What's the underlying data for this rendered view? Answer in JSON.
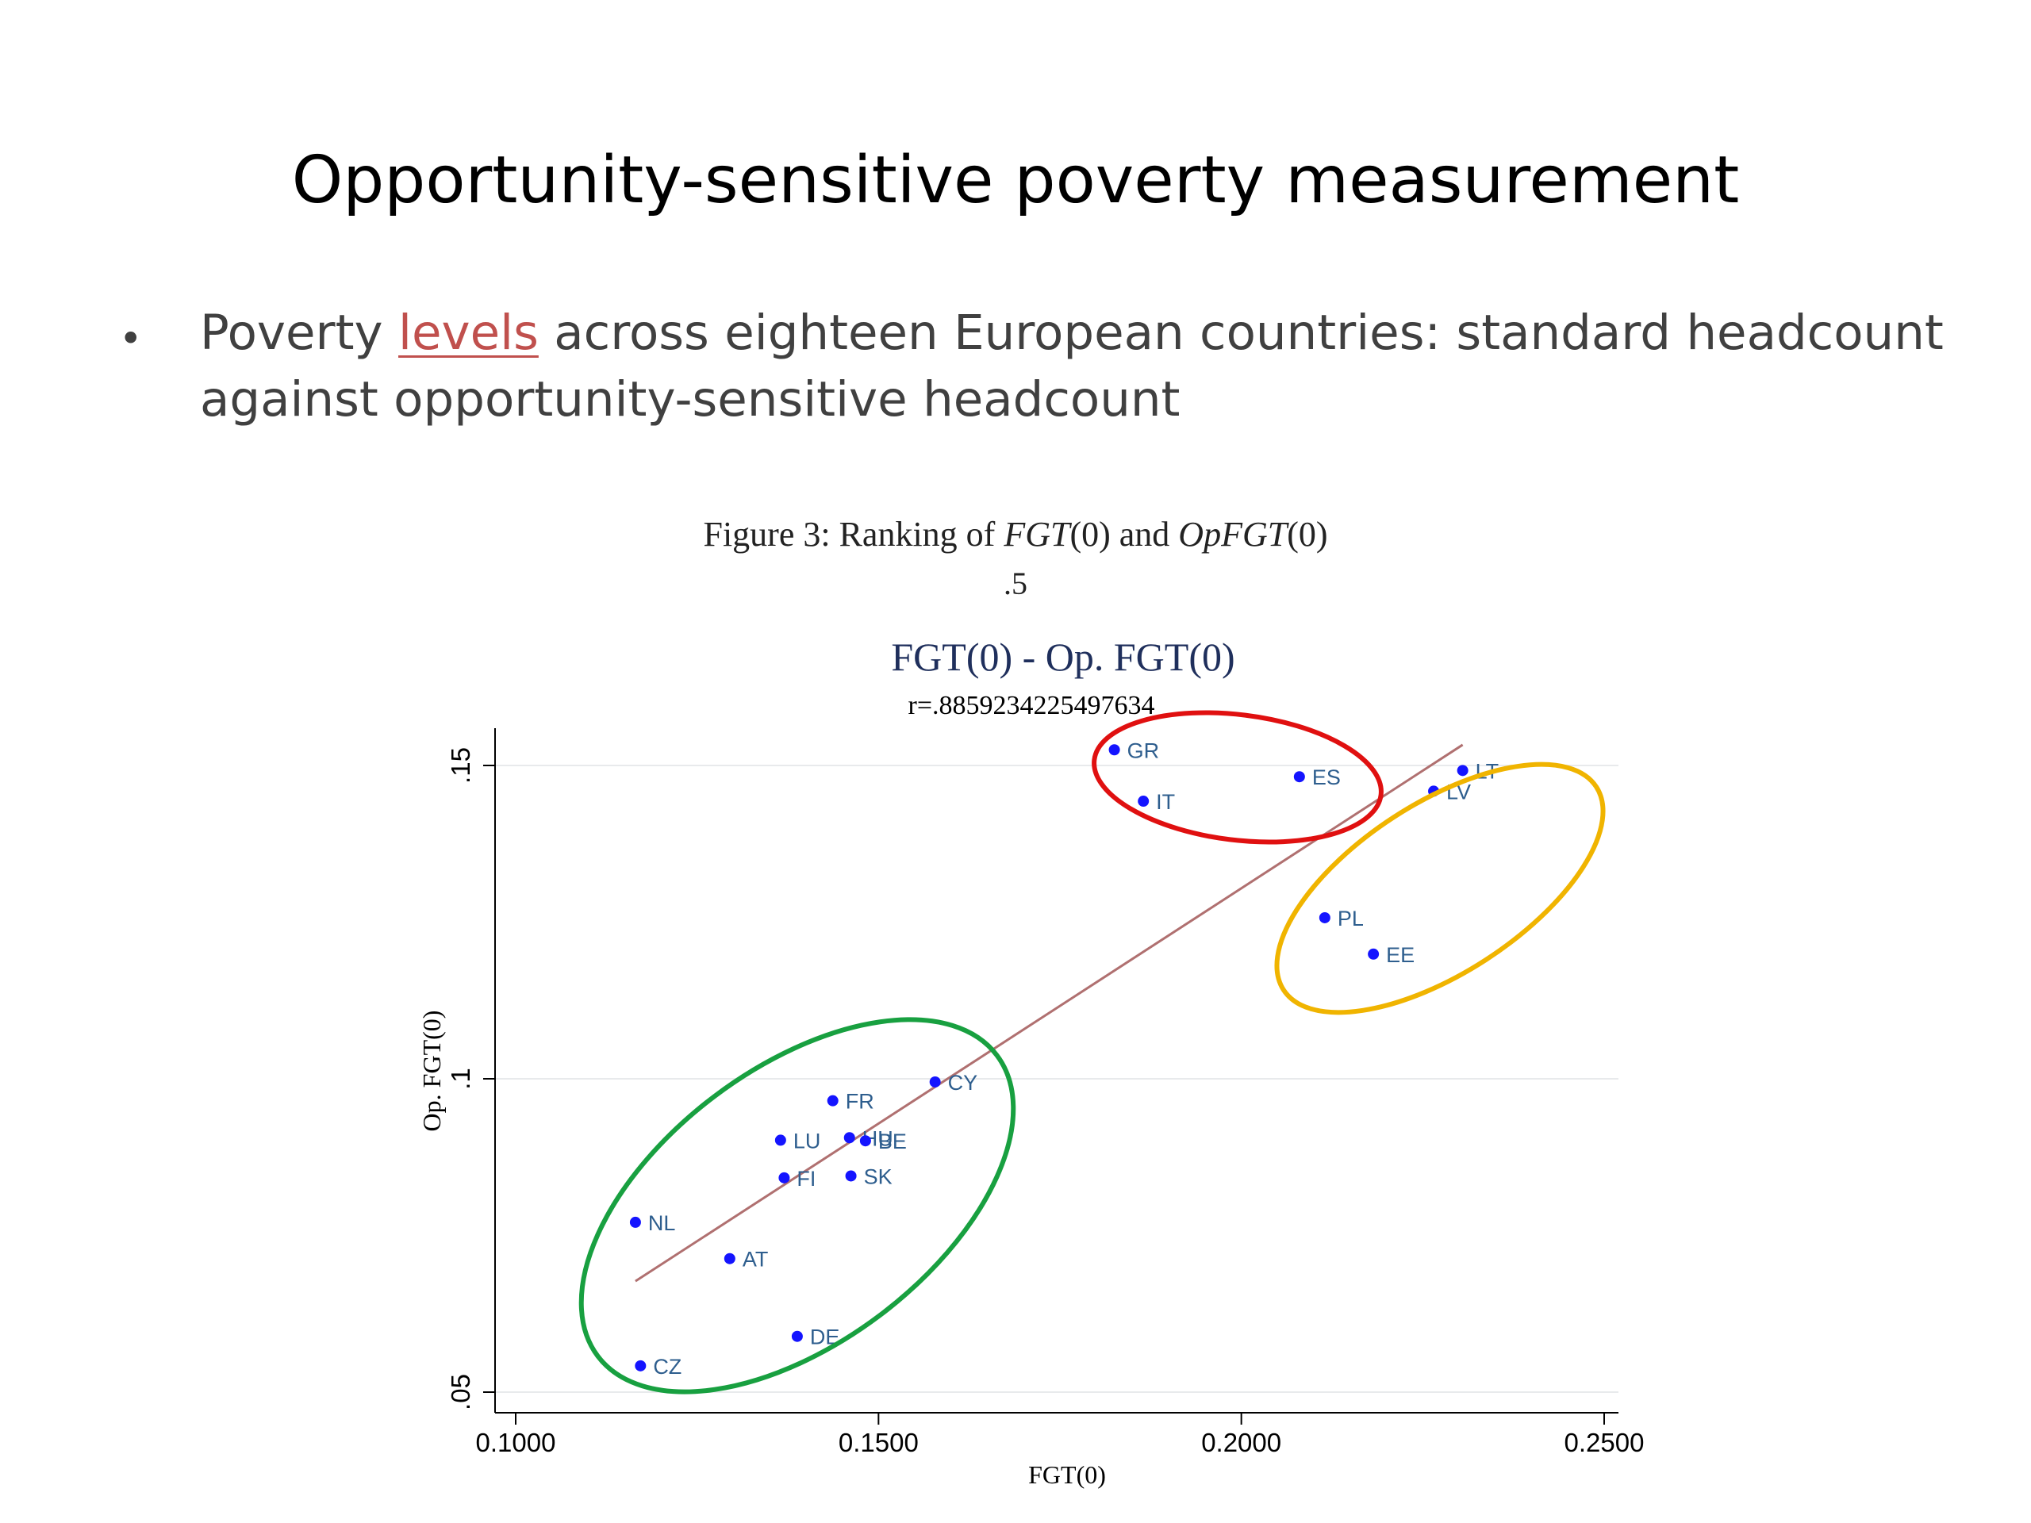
{
  "slide": {
    "title": "Opportunity-sensitive poverty measurement",
    "bullet_pre": "Poverty ",
    "bullet_highlight": "levels",
    "bullet_post": " across eighteen European countries: standard headcount against opportunity-sensitive headcount"
  },
  "figure": {
    "caption_prefix": "Figure 3:  Ranking of ",
    "caption_m1": "FGT",
    "caption_a1": "(0) and ",
    "caption_m2": "OpFGT",
    "caption_a2": "(0)",
    "scale_note": ".5"
  },
  "chart_data": {
    "type": "scatter",
    "title": "FGT(0) - Op. FGT(0)",
    "subtitle": "r=.8859234225497634",
    "xlabel": "FGT(0)",
    "ylabel": "Op. FGT(0)",
    "xlim": [
      0.1,
      0.25
    ],
    "ylim": [
      0.05,
      0.155
    ],
    "x_ticks": [
      0.1,
      0.15,
      0.2,
      0.25
    ],
    "x_tick_labels": [
      "0.1000",
      "0.1500",
      "0.2000",
      "0.2500"
    ],
    "y_ticks": [
      0.05,
      0.1,
      0.15
    ],
    "y_tick_labels": [
      ".05",
      ".1",
      ".15"
    ],
    "grid": "horizontal",
    "points": [
      {
        "label": "GR",
        "x": 0.1825,
        "y": 0.1525
      },
      {
        "label": "IT",
        "x": 0.1865,
        "y": 0.1443
      },
      {
        "label": "ES",
        "x": 0.208,
        "y": 0.1482
      },
      {
        "label": "LT",
        "x": 0.2305,
        "y": 0.1492
      },
      {
        "label": "LV",
        "x": 0.2265,
        "y": 0.1459
      },
      {
        "label": "PL",
        "x": 0.2115,
        "y": 0.1257
      },
      {
        "label": "EE",
        "x": 0.2182,
        "y": 0.1199
      },
      {
        "label": "CY",
        "x": 0.1578,
        "y": 0.0995
      },
      {
        "label": "FR",
        "x": 0.1437,
        "y": 0.0965
      },
      {
        "label": "LU",
        "x": 0.1365,
        "y": 0.0902
      },
      {
        "label": "HU",
        "x": 0.146,
        "y": 0.0906
      },
      {
        "label": "BE",
        "x": 0.1482,
        "y": 0.0901
      },
      {
        "label": "FI",
        "x": 0.137,
        "y": 0.0842
      },
      {
        "label": "SK",
        "x": 0.1462,
        "y": 0.0845
      },
      {
        "label": "NL",
        "x": 0.1165,
        "y": 0.0771
      },
      {
        "label": "AT",
        "x": 0.1295,
        "y": 0.0713
      },
      {
        "label": "DE",
        "x": 0.1388,
        "y": 0.0589
      },
      {
        "label": "CZ",
        "x": 0.1172,
        "y": 0.0542
      }
    ],
    "fit_line": {
      "x1": 0.1165,
      "y1": 0.0677,
      "x2": 0.2305,
      "y2": 0.1533
    },
    "colors": {
      "points": "#1414ff",
      "fit_line": "#b07070",
      "labels": "#2e5e8e",
      "grid": "#e8eaec"
    },
    "highlight_ellipses": [
      {
        "color": "#e01010",
        "group": [
          "GR",
          "IT",
          "ES"
        ]
      },
      {
        "color": "#f0b400",
        "group": [
          "LT",
          "LV",
          "PL",
          "EE"
        ]
      },
      {
        "color": "#18a040",
        "group": [
          "CY",
          "FR",
          "LU",
          "HU",
          "BE",
          "FI",
          "SK",
          "NL",
          "AT",
          "DE",
          "CZ"
        ]
      }
    ]
  }
}
